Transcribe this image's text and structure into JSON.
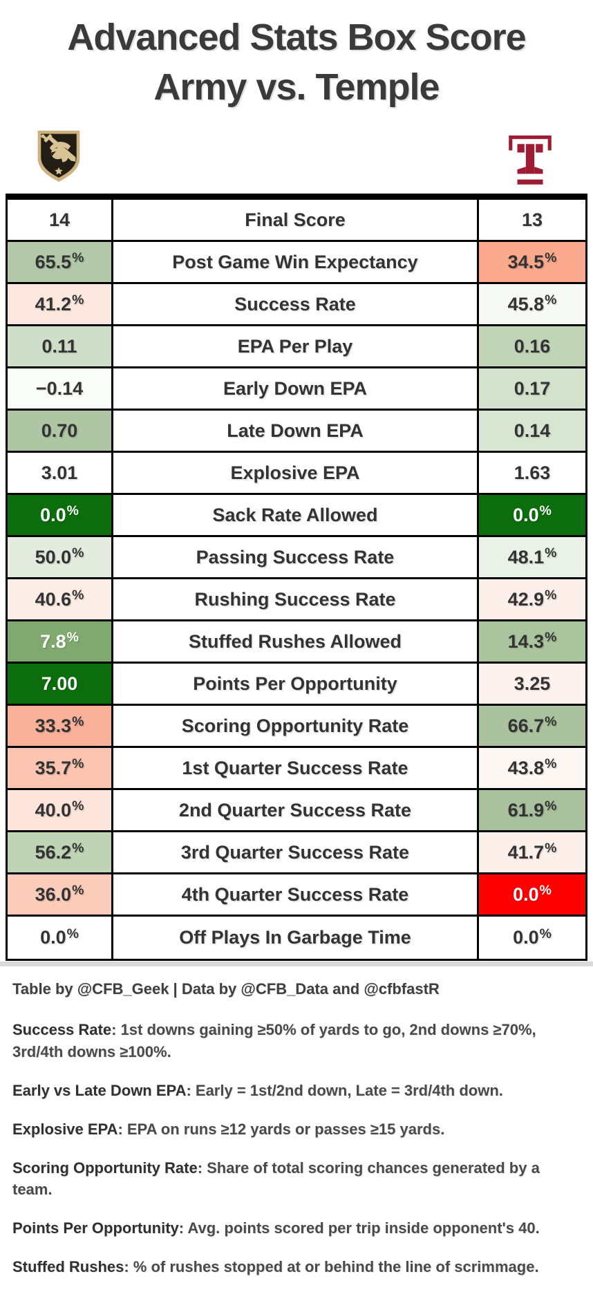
{
  "title": {
    "line1": "Advanced Stats Box Score",
    "line2": "Army vs. Temple"
  },
  "teams": {
    "army": {
      "name": "Army",
      "black": "#221d15",
      "gold": "#cdb27f",
      "gold_light": "#d8c394"
    },
    "temple": {
      "name": "Temple",
      "cherry": "#9e1b33"
    }
  },
  "table": {
    "default_fg": "#333333",
    "rows": [
      {
        "label": "Final Score",
        "army": {
          "value": "14",
          "bg": "#ffffff"
        },
        "temple": {
          "value": "13",
          "bg": "#ffffff"
        }
      },
      {
        "label": "Post Game Win Expectancy",
        "army": {
          "value": "65.5%",
          "bg": "#b2c8a8"
        },
        "temple": {
          "value": "34.5%",
          "bg": "#fba98d"
        }
      },
      {
        "label": "Success Rate",
        "army": {
          "value": "41.2%",
          "bg": "#fce8df"
        },
        "temple": {
          "value": "45.8%",
          "bg": "#f7faf4"
        }
      },
      {
        "label": "EPA Per Play",
        "army": {
          "value": "0.11",
          "bg": "#cfdec8"
        },
        "temple": {
          "value": "0.16",
          "bg": "#c2d4b8"
        }
      },
      {
        "label": "Early Down EPA",
        "army": {
          "value": "−0.14",
          "bg": "#fafcf8"
        },
        "temple": {
          "value": "0.17",
          "bg": "#d4e1cd"
        }
      },
      {
        "label": "Late Down EPA",
        "army": {
          "value": "0.70",
          "bg": "#aec6a4"
        },
        "temple": {
          "value": "0.14",
          "bg": "#d9e5d3"
        }
      },
      {
        "label": "Explosive EPA",
        "army": {
          "value": "3.01",
          "bg": "#ffffff"
        },
        "temple": {
          "value": "1.63",
          "bg": "#ffffff"
        }
      },
      {
        "label": "Sack Rate Allowed",
        "army": {
          "value": "0.0%",
          "bg": "#0b6d0b",
          "fg": "#ffffff"
        },
        "temple": {
          "value": "0.0%",
          "bg": "#0b6d0b",
          "fg": "#ffffff"
        }
      },
      {
        "label": "Passing Success Rate",
        "army": {
          "value": "50.0%",
          "bg": "#e4ecdf"
        },
        "temple": {
          "value": "48.1%",
          "bg": "#eaf1e6"
        }
      },
      {
        "label": "Rushing Success Rate",
        "army": {
          "value": "40.6%",
          "bg": "#fdede7"
        },
        "temple": {
          "value": "42.9%",
          "bg": "#fdf0eb"
        }
      },
      {
        "label": "Stuffed Rushes Allowed",
        "army": {
          "value": "7.8%",
          "bg": "#7fa96f",
          "fg": "#ffffff"
        },
        "temple": {
          "value": "14.3%",
          "bg": "#aac49e"
        }
      },
      {
        "label": "Points Per Opportunity",
        "army": {
          "value": "7.00",
          "bg": "#0b6d0b",
          "fg": "#ffffff"
        },
        "temple": {
          "value": "3.25",
          "bg": "#fdf2ee"
        }
      },
      {
        "label": "Scoring Opportunity Rate",
        "army": {
          "value": "33.3%",
          "bg": "#fab199"
        },
        "temple": {
          "value": "66.7%",
          "bg": "#aac29e"
        }
      },
      {
        "label": "1st Quarter Success Rate",
        "army": {
          "value": "35.7%",
          "bg": "#fbc5b1"
        },
        "temple": {
          "value": "43.8%",
          "bg": "#fdf7f4"
        }
      },
      {
        "label": "2nd Quarter Success Rate",
        "army": {
          "value": "40.0%",
          "bg": "#fde5dc"
        },
        "temple": {
          "value": "61.9%",
          "bg": "#a9c19d"
        }
      },
      {
        "label": "3rd Quarter Success Rate",
        "army": {
          "value": "56.2%",
          "bg": "#bfd4b5"
        },
        "temple": {
          "value": "41.7%",
          "bg": "#fdefe9"
        }
      },
      {
        "label": "4th Quarter Success Rate",
        "army": {
          "value": "36.0%",
          "bg": "#fcccba"
        },
        "temple": {
          "value": "0.0%",
          "bg": "#fe0000",
          "fg": "#ffffff"
        }
      },
      {
        "label": "Off Plays In Garbage Time",
        "army": {
          "value": "0.0%",
          "bg": "#ffffff"
        },
        "temple": {
          "value": "0.0%",
          "bg": "#ffffff"
        }
      }
    ]
  },
  "footer": {
    "credit": "Table by @CFB_Geek | Data by @CFB_Data and @cfbfastR",
    "notes": [
      {
        "term": "Success Rate",
        "text": ": 1st downs gaining ≥50% of yards to go, 2nd downs ≥70%, 3rd/4th downs ≥100%."
      },
      {
        "term": "Early vs Late Down EPA",
        "text": ": Early = 1st/2nd down, Late = 3rd/4th down."
      },
      {
        "term": "Explosive EPA",
        "text": ": EPA on runs ≥12 yards or passes ≥15 yards."
      },
      {
        "term": "Scoring Opportunity Rate",
        "text": ": Share of total scoring chances generated by a team."
      },
      {
        "term": "Points Per Opportunity",
        "text": ": Avg. points scored per trip inside opponent's 40."
      },
      {
        "term": "Stuffed Rushes",
        "text": ": % of rushes stopped at or behind the line of scrimmage."
      }
    ]
  },
  "chart_data": {
    "type": "table",
    "title": "Advanced Stats Box Score — Army vs. Temple",
    "categories": [
      "Final Score",
      "Post Game Win Expectancy",
      "Success Rate",
      "EPA Per Play",
      "Early Down EPA",
      "Late Down EPA",
      "Explosive EPA",
      "Sack Rate Allowed",
      "Passing Success Rate",
      "Rushing Success Rate",
      "Stuffed Rushes Allowed",
      "Points Per Opportunity",
      "Scoring Opportunity Rate",
      "1st Quarter Success Rate",
      "2nd Quarter Success Rate",
      "3rd Quarter Success Rate",
      "4th Quarter Success Rate",
      "Off Plays In Garbage Time"
    ],
    "series": [
      {
        "name": "Army",
        "values": [
          "14",
          "65.5%",
          "41.2%",
          "0.11",
          "−0.14",
          "0.70",
          "3.01",
          "0.0%",
          "50.0%",
          "40.6%",
          "7.8%",
          "7.00",
          "33.3%",
          "35.7%",
          "40.0%",
          "56.2%",
          "36.0%",
          "0.0%"
        ]
      },
      {
        "name": "Temple",
        "values": [
          "13",
          "34.5%",
          "45.8%",
          "0.16",
          "0.17",
          "0.14",
          "1.63",
          "0.0%",
          "48.1%",
          "42.9%",
          "14.3%",
          "3.25",
          "66.7%",
          "43.8%",
          "61.9%",
          "41.7%",
          "0.0%",
          "0.0%"
        ]
      }
    ],
    "legend_position": "columns",
    "color_scale": "red = bad, green = good (per-metric shading)"
  }
}
